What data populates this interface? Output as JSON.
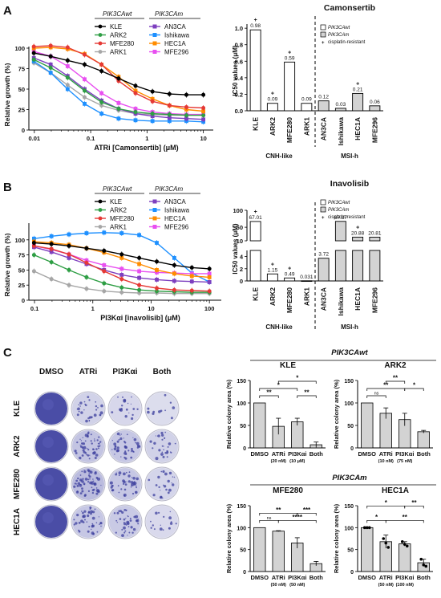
{
  "panel_labels": [
    "A",
    "B",
    "C"
  ],
  "colors": {
    "KLE": "#000000",
    "ARK2": "#2e9e44",
    "MFE280": "#e53935",
    "ARK1": "#a6a6a6",
    "AN3CA": "#7d3fbf",
    "Ishikawa": "#1e90ff",
    "HEC1A": "#ff8c00",
    "MFE296": "#e84ff0",
    "bar_gray": "#d3d3d3",
    "plate_blue": "#3c3f9e"
  },
  "A": {
    "curve_legend": {
      "wt_header": "PIK3CAwt",
      "m_header": "PIK3CAm",
      "wt": [
        "KLE",
        "ARK2",
        "MFE280",
        "ARK1"
      ],
      "m": [
        "AN3CA",
        "Ishikawa",
        "HEC1A",
        "MFE296"
      ]
    },
    "bar_title": "Camonsertib",
    "bar_legend": [
      "PIK3CAwt",
      "PIK3CAm",
      "cisplatin-resistant"
    ],
    "group_labels": [
      "CNH-like",
      "MSI-h"
    ]
  },
  "B": {
    "curve_legend": {
      "wt_header": "PIK3CAwt",
      "m_header": "PIK3CAm",
      "wt": [
        "KLE",
        "ARK2",
        "MFE280",
        "ARK1"
      ],
      "m": [
        "AN3CA",
        "Ishikawa",
        "HEC1A",
        "MFE296"
      ]
    },
    "bar_title": "Inavolisib",
    "bar_legend": [
      "PIK3CAwt",
      "PIK3CAm",
      "cisplatin-resistant"
    ],
    "group_labels": [
      "CNH-like",
      "MSI-h"
    ]
  },
  "C": {
    "plate_cols": [
      "DMSO",
      "ATRi",
      "PI3Kαi",
      "Both"
    ],
    "plate_rows": [
      "KLE",
      "ARK2",
      "MFE280",
      "HEC1A"
    ],
    "sections": [
      "PIK3CAwt",
      "PIK3CAm"
    ]
  },
  "chart_data": [
    {
      "id": "curveA",
      "type": "line",
      "xlabel": "ATRi [Camonsertib] (μM)",
      "ylabel": "Relative growth (%)",
      "xscale": "log",
      "xticks": [
        "0.01",
        "0.1",
        "1",
        "10"
      ],
      "yticks": [
        "0",
        "25",
        "50",
        "75",
        "100"
      ],
      "xlim": [
        0.008,
        15
      ],
      "ylim": [
        0,
        100
      ],
      "x": [
        0.0098,
        0.0195,
        0.039,
        0.078,
        0.156,
        0.313,
        0.625,
        1.25,
        2.5,
        5,
        10
      ],
      "series": [
        {
          "name": "KLE",
          "values": [
            94,
            90,
            85,
            80,
            72,
            63,
            54,
            47,
            44,
            43,
            43
          ]
        },
        {
          "name": "ARK2",
          "values": [
            86,
            76,
            64,
            48,
            34,
            26,
            22,
            20,
            19,
            18,
            18
          ]
        },
        {
          "name": "MFE280",
          "values": [
            102,
            103,
            101,
            92,
            80,
            60,
            45,
            35,
            30,
            28,
            27
          ]
        },
        {
          "name": "ARK1",
          "values": [
            82,
            70,
            55,
            40,
            30,
            24,
            20,
            19,
            18,
            18,
            18
          ]
        },
        {
          "name": "AN3CA",
          "values": [
            88,
            80,
            66,
            50,
            36,
            26,
            20,
            17,
            15,
            14,
            13
          ]
        },
        {
          "name": "Ishikawa",
          "values": [
            84,
            70,
            50,
            32,
            20,
            14,
            12,
            11,
            11,
            11,
            10
          ]
        },
        {
          "name": "HEC1A",
          "values": [
            100,
            101,
            99,
            93,
            80,
            65,
            48,
            38,
            30,
            25,
            23
          ]
        },
        {
          "name": "MFE296",
          "values": [
            96,
            90,
            78,
            62,
            45,
            33,
            26,
            22,
            20,
            19,
            19
          ]
        }
      ]
    },
    {
      "id": "barA",
      "type": "bar",
      "title": "Camonsertib",
      "ylabel": "IC50 values (μM)",
      "yticks": [
        "0.0",
        "0.2",
        "0.4",
        "0.6",
        "0.8",
        "1.0"
      ],
      "ylim": [
        0,
        1.05
      ],
      "categories": [
        "KLE",
        "ARK2",
        "MFE280",
        "ARK1",
        "AN3CA",
        "Ishikawa",
        "HEC1A",
        "MFE296"
      ],
      "values": [
        0.98,
        0.09,
        0.59,
        0.09,
        0.12,
        0.03,
        0.21,
        0.06
      ],
      "value_labels": [
        "0.98",
        "0.09",
        "0.59",
        "0.09",
        "0.12",
        "0.03",
        "0.21",
        "0.06"
      ],
      "cisplatin_resistant": [
        "KLE",
        "ARK2",
        "MFE280",
        "HEC1A"
      ],
      "pik3ca_mutant": [
        "AN3CA",
        "Ishikawa",
        "HEC1A",
        "MFE296"
      ]
    },
    {
      "id": "curveB",
      "type": "line",
      "xlabel": "PI3Kαi [inavolisib] (μM)",
      "ylabel": "Relative growth (%)",
      "xscale": "log",
      "xticks": [
        "0.1",
        "1",
        "10",
        "100"
      ],
      "yticks": [
        "0",
        "25",
        "50",
        "75",
        "100"
      ],
      "xlim": [
        0.08,
        160
      ],
      "ylim": [
        0,
        125
      ],
      "x": [
        0.098,
        0.195,
        0.39,
        0.78,
        1.56,
        3.13,
        6.25,
        12.5,
        25,
        50,
        100
      ],
      "series": [
        {
          "name": "KLE",
          "values": [
            95,
            93,
            90,
            86,
            82,
            76,
            70,
            64,
            58,
            54,
            52
          ]
        },
        {
          "name": "ARK2",
          "values": [
            75,
            63,
            50,
            38,
            28,
            21,
            17,
            15,
            14,
            13,
            13
          ]
        },
        {
          "name": "MFE280",
          "values": [
            90,
            85,
            76,
            62,
            48,
            35,
            25,
            20,
            17,
            16,
            15
          ]
        },
        {
          "name": "ARK1",
          "values": [
            48,
            35,
            25,
            19,
            15,
            13,
            12,
            12,
            11,
            11,
            11
          ]
        },
        {
          "name": "AN3CA",
          "values": [
            88,
            80,
            70,
            60,
            50,
            42,
            37,
            34,
            32,
            31,
            30
          ]
        },
        {
          "name": "Ishikawa",
          "values": [
            102,
            106,
            109,
            111,
            112,
            111,
            108,
            95,
            70,
            45,
            30
          ]
        },
        {
          "name": "HEC1A",
          "values": [
            97,
            95,
            92,
            86,
            79,
            70,
            60,
            50,
            44,
            40,
            38
          ]
        },
        {
          "name": "MFE296",
          "values": [
            90,
            84,
            76,
            66,
            58,
            52,
            48,
            46,
            45,
            44,
            44
          ]
        }
      ]
    },
    {
      "id": "barB",
      "type": "bar",
      "title": "Inavolisib",
      "ylabel": "IC50 values (μM)",
      "broken_axis": true,
      "yticks_upper": [
        "10",
        "50",
        "100"
      ],
      "yticks_lower": [
        "0",
        "2",
        "4"
      ],
      "categories": [
        "KLE",
        "ARK2",
        "MFE280",
        "ARK1",
        "AN3CA",
        "Ishikawa",
        "HEC1A",
        "MFE296"
      ],
      "values": [
        67.01,
        1.15,
        0.49,
        0.031,
        3.72,
        67.37,
        20.88,
        20.81
      ],
      "value_labels": [
        "67.01",
        "1.15",
        "0.49",
        "0.031",
        "3.72",
        "67.37",
        "20.88",
        "20.81"
      ],
      "cisplatin_resistant": [
        "KLE",
        "ARK2",
        "MFE280",
        "HEC1A"
      ],
      "pik3ca_mutant": [
        "AN3CA",
        "Ishikawa",
        "HEC1A",
        "MFE296"
      ]
    },
    {
      "id": "colonyKLE",
      "type": "bar",
      "title": "KLE",
      "ylabel": "Relative colony area (%)",
      "yticks": [
        "0",
        "50",
        "100",
        "150"
      ],
      "ylim": [
        0,
        150
      ],
      "categories": [
        "DMSO",
        "ATRi",
        "PI3Kαi",
        "Both"
      ],
      "doses": [
        "(20 nM)",
        "(10 μM)"
      ],
      "values": [
        100,
        48,
        58,
        7
      ],
      "errors": [
        0,
        18,
        8,
        6
      ],
      "significance": [
        {
          "pair": [
            0,
            1
          ],
          "label": "**",
          "level": 1
        },
        {
          "pair": [
            2,
            3
          ],
          "label": "**",
          "level": 1
        },
        {
          "pair": [
            0,
            2
          ],
          "label": "*",
          "level": 2
        },
        {
          "pair": [
            1,
            3
          ],
          "label": "*",
          "level": 3
        }
      ]
    },
    {
      "id": "colonyARK2",
      "type": "bar",
      "title": "ARK2",
      "ylabel": "Relative colony area (%)",
      "yticks": [
        "0",
        "50",
        "100",
        "150"
      ],
      "ylim": [
        0,
        150
      ],
      "categories": [
        "DMSO",
        "ATRi",
        "PI3Kαi",
        "Both"
      ],
      "doses": [
        "(10 nM)",
        "(75 nM)"
      ],
      "values": [
        100,
        77,
        63,
        36
      ],
      "errors": [
        0,
        12,
        14,
        3
      ],
      "significance": [
        {
          "pair": [
            0,
            1
          ],
          "label": "ns",
          "level": 1
        },
        {
          "pair": [
            1,
            2
          ],
          "label": "**",
          "level": 3
        },
        {
          "pair": [
            0,
            2
          ],
          "label": "**",
          "level": 2
        },
        {
          "pair": [
            2,
            3
          ],
          "label": "*",
          "level": 2
        }
      ]
    },
    {
      "id": "colonyMFE280",
      "type": "bar",
      "title": "MFE280",
      "ylabel": "Relative colony area (%)",
      "yticks": [
        "0",
        "50",
        "100",
        "150"
      ],
      "ylim": [
        0,
        150
      ],
      "categories": [
        "DMSO",
        "ATRi",
        "PI3Kαi",
        "Both"
      ],
      "doses": [
        "(50 nM)",
        "(50 nM)"
      ],
      "values": [
        100,
        92,
        65,
        18
      ],
      "errors": [
        0,
        1,
        12,
        5
      ],
      "significance": [
        {
          "pair": [
            0,
            1
          ],
          "label": "ns",
          "level": 1
        },
        {
          "pair": [
            0,
            2
          ],
          "label": "**",
          "level": 2
        },
        {
          "pair": [
            1,
            3
          ],
          "label": "****",
          "level": 1
        },
        {
          "pair": [
            2,
            3
          ],
          "label": "***",
          "level": 2
        }
      ]
    },
    {
      "id": "colonyHEC1A",
      "type": "bar",
      "title": "HEC1A",
      "ylabel": "Relative colony area (%)",
      "yticks": [
        "0",
        "50",
        "100",
        "150"
      ],
      "ylim": [
        0,
        150
      ],
      "categories": [
        "DMSO",
        "ATRi",
        "PI3Kαi",
        "Both"
      ],
      "doses": [
        "(50 nM)",
        "(100 nM)"
      ],
      "values": [
        100,
        68,
        63,
        20
      ],
      "errors": [
        0,
        15,
        5,
        8
      ],
      "points": [
        [
          100,
          100,
          100
        ],
        [
          75,
          65,
          55
        ],
        [
          68,
          62,
          58
        ],
        [
          28,
          15,
          12
        ]
      ],
      "significance": [
        {
          "pair": [
            0,
            1
          ],
          "label": "*",
          "level": 1
        },
        {
          "pair": [
            1,
            3
          ],
          "label": "**",
          "level": 1
        },
        {
          "pair": [
            0,
            2
          ],
          "label": "*",
          "level": 3
        },
        {
          "pair": [
            2,
            3
          ],
          "label": "**",
          "level": 3
        }
      ]
    }
  ]
}
